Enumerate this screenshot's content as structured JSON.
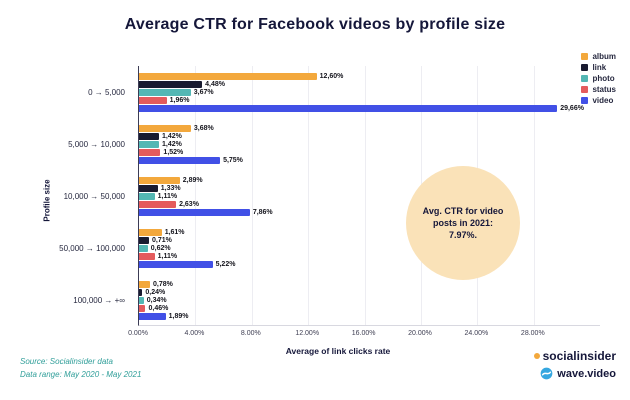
{
  "title": "Average CTR for Facebook videos by profile size",
  "chart_data": {
    "type": "bar",
    "orientation": "horizontal",
    "title": "Average CTR for Facebook videos by profile size",
    "xlabel": "Average of link clicks rate",
    "ylabel": "Profile size",
    "xlim": [
      0,
      32
    ],
    "grid": true,
    "legend_position": "top-right",
    "x_tick_values": [
      0,
      4,
      8,
      12,
      16,
      20,
      24,
      28
    ],
    "x_tick_labels": [
      "0.00%",
      "4.00%",
      "8.00%",
      "12.00%",
      "16.00%",
      "20.00%",
      "24.00%",
      "28.00%"
    ],
    "categories": [
      "0 → 5,000",
      "5,000 → 10,000",
      "10,000 → 50,000",
      "50,000 → 100,000",
      "100,000 → +∞"
    ],
    "series": [
      {
        "name": "album",
        "color": "#f3a83c",
        "values": [
          12.6,
          3.68,
          2.89,
          1.61,
          0.78
        ],
        "labels": [
          "12,60%",
          "3,68%",
          "2,89%",
          "1,61%",
          "0,78%"
        ]
      },
      {
        "name": "link",
        "color": "#191b30",
        "values": [
          4.48,
          1.42,
          1.33,
          0.71,
          0.24
        ],
        "labels": [
          "4,48%",
          "1,42%",
          "1,33%",
          "0,71%",
          "0,24%"
        ]
      },
      {
        "name": "photo",
        "color": "#53b7b4",
        "values": [
          3.67,
          1.42,
          1.11,
          0.62,
          0.34
        ],
        "labels": [
          "3,67%",
          "1,42%",
          "1,11%",
          "0,62%",
          "0,34%"
        ]
      },
      {
        "name": "status",
        "color": "#e45b5d",
        "values": [
          1.96,
          1.52,
          2.63,
          1.11,
          0.46
        ],
        "labels": [
          "1,96%",
          "1,52%",
          "2,63%",
          "1,11%",
          "0,46%"
        ]
      },
      {
        "name": "video",
        "color": "#4150e6",
        "values": [
          29.66,
          5.75,
          7.86,
          5.22,
          1.89
        ],
        "labels": [
          "29,66%",
          "5,75%",
          "7,86%",
          "5,22%",
          "1,89%"
        ]
      }
    ]
  },
  "annotation": {
    "text": "Avg. CTR for video posts in 2021: 7.97%.",
    "bg_color": "#fae2b8"
  },
  "axes": {
    "x_title": "Average of link clicks rate",
    "y_title": "Profile size"
  },
  "footer": {
    "source": "Source: Socialinsider data",
    "range": "Data range: May 2020 - May 2021"
  },
  "branding": {
    "socialinsider": "socialinsider",
    "wavevideo": "wave.video",
    "dot_color": "#f3a83c"
  }
}
